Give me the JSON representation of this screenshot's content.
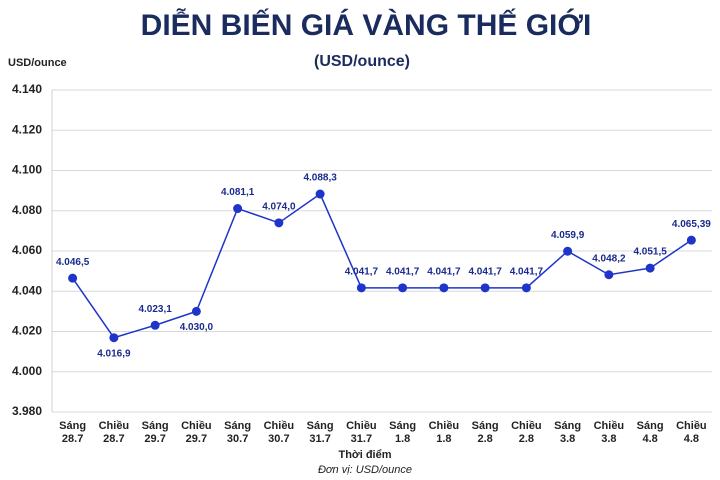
{
  "chart_data": {
    "type": "line",
    "title": "DIỄN BIẾN GIÁ VÀNG THẾ GIỚI",
    "subtitle": "(USD/ounce)",
    "y_axis_label": "USD/ounce",
    "x_axis_label": "Thời điểm",
    "note": "Đơn vị: USD/ounce",
    "categories": [
      [
        "Sáng",
        "28.7"
      ],
      [
        "Chiều",
        "28.7"
      ],
      [
        "Sáng",
        "29.7"
      ],
      [
        "Chiều",
        "29.7"
      ],
      [
        "Sáng",
        "30.7"
      ],
      [
        "Chiều",
        "30.7"
      ],
      [
        "Sáng",
        "31.7"
      ],
      [
        "Chiều",
        "31.7"
      ],
      [
        "Sáng",
        "1.8"
      ],
      [
        "Chiều",
        "1.8"
      ],
      [
        "Sáng",
        "2.8"
      ],
      [
        "Chiều",
        "2.8"
      ],
      [
        "Sáng",
        "3.8"
      ],
      [
        "Chiều",
        "3.8"
      ],
      [
        "Sáng",
        "4.8"
      ],
      [
        "Chiều",
        "4.8"
      ]
    ],
    "values": [
      4046.5,
      4016.9,
      4023.1,
      4030.0,
      4081.1,
      4074.0,
      4088.3,
      4041.7,
      4041.7,
      4041.7,
      4041.7,
      4041.7,
      4059.9,
      4048.2,
      4051.5,
      4065.39
    ],
    "value_labels": [
      "4.046,5",
      "4.016,9",
      "4.023,1",
      "4.030,0",
      "4.081,1",
      "4.074,0",
      "4.088,3",
      "4.041,7",
      "4.041,7",
      "4.041,7",
      "4.041,7",
      "4.041,7",
      "4.059,9",
      "4.048,2",
      "4.051,5",
      "4.065,39"
    ],
    "color": "#1f35c9",
    "ylim": [
      3980,
      4140
    ],
    "yticks": [
      {
        "value": 3980,
        "label": "3.980"
      },
      {
        "value": 4000,
        "label": "4.000"
      },
      {
        "value": 4020,
        "label": "4.020"
      },
      {
        "value": 4040,
        "label": "4.040"
      },
      {
        "value": 4060,
        "label": "4.060"
      },
      {
        "value": 4080,
        "label": "4.080"
      },
      {
        "value": 4100,
        "label": "4.100"
      },
      {
        "value": 4120,
        "label": "4.120"
      },
      {
        "value": 4140,
        "label": "4.140"
      }
    ],
    "grid": true
  }
}
